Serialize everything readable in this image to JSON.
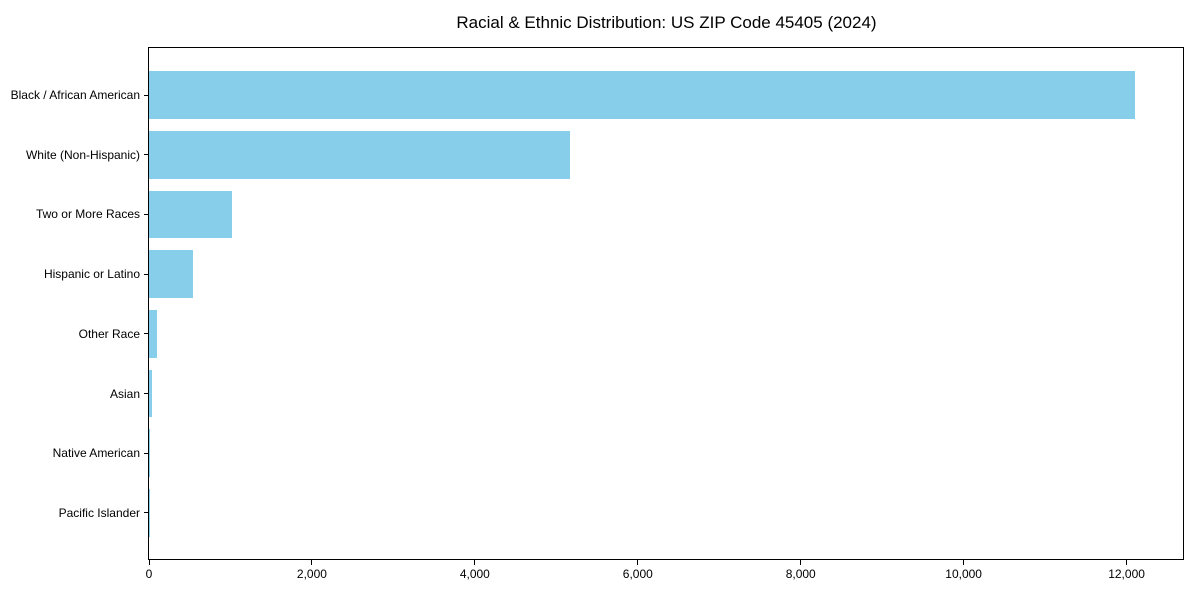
{
  "chart_data": {
    "type": "bar",
    "orientation": "horizontal",
    "title": "Racial & Ethnic Distribution: US ZIP Code 45405 (2024)",
    "categories": [
      "Black / African American",
      "White (Non-Hispanic)",
      "Two or More Races",
      "Hispanic or Latino",
      "Other Race",
      "Asian",
      "Native American",
      "Pacific Islander"
    ],
    "values": [
      12100,
      5170,
      1020,
      540,
      95,
      35,
      10,
      4
    ],
    "xlabel": "",
    "ylabel": "",
    "xlim": [
      0,
      12705
    ],
    "xticks": [
      0,
      2000,
      4000,
      6000,
      8000,
      10000,
      12000
    ],
    "xtick_labels": [
      "0",
      "2,000",
      "4,000",
      "6,000",
      "8,000",
      "10,000",
      "12,000"
    ],
    "bar_color": "#87CEEB",
    "axis_color": "#000000",
    "text_color": "#000000",
    "background_color": "#ffffff",
    "grid": false,
    "legend": "none"
  }
}
